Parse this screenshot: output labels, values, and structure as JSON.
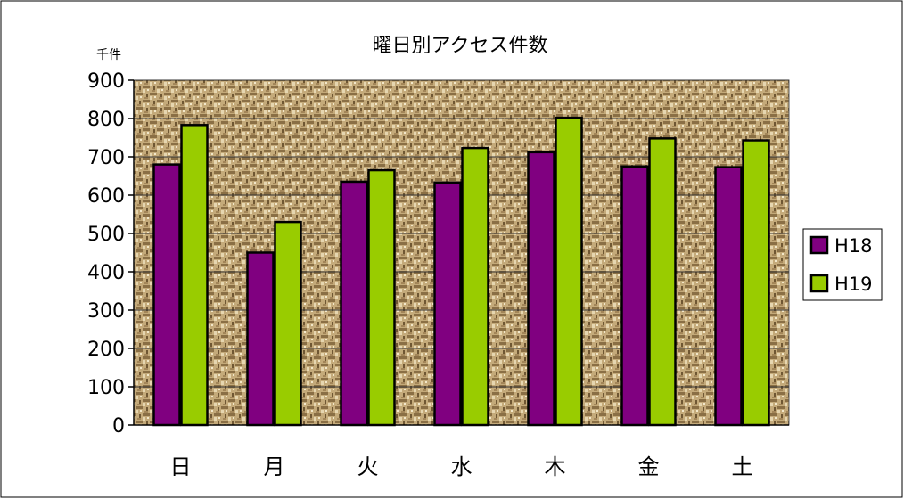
{
  "chart_data": {
    "type": "bar",
    "title": "曜日別アクセス件数",
    "ylabel": "千件",
    "xlabel": "",
    "categories": [
      "日",
      "月",
      "火",
      "水",
      "木",
      "金",
      "土"
    ],
    "series": [
      {
        "name": "H18",
        "values": [
          680,
          450,
          635,
          633,
          712,
          675,
          673
        ],
        "color": "#800080"
      },
      {
        "name": "H19",
        "values": [
          783,
          530,
          665,
          723,
          802,
          748,
          743
        ],
        "color": "#99cc00"
      }
    ],
    "ylim": [
      0,
      900
    ],
    "yticks": [
      0,
      100,
      200,
      300,
      400,
      500,
      600,
      700,
      800,
      900
    ],
    "grid": true,
    "legend_position": "right"
  }
}
